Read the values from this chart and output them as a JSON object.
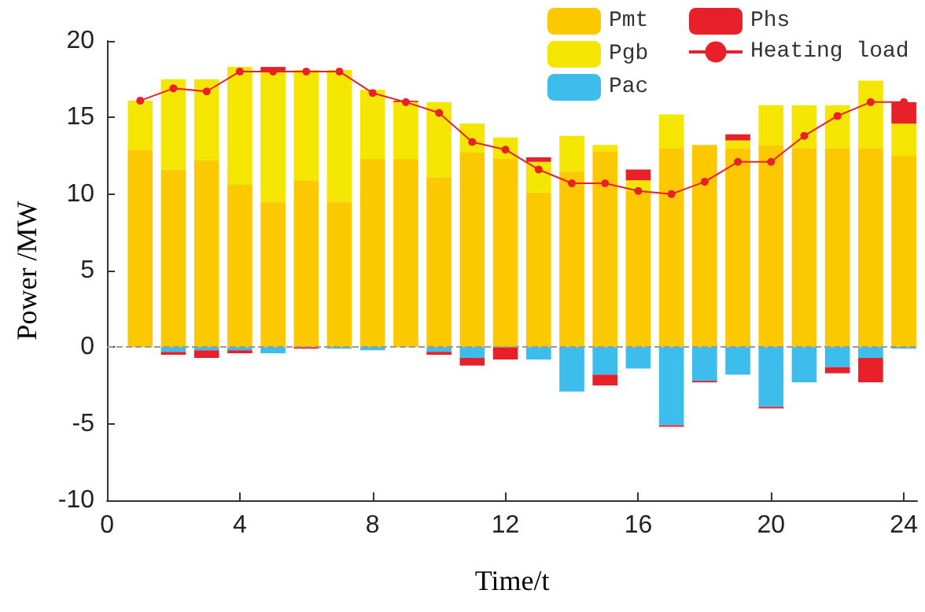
{
  "chart_data": {
    "type": "bar",
    "stacked": true,
    "xlabel": "Time/t",
    "ylabel": "Power /MW",
    "x": [
      1,
      2,
      3,
      4,
      5,
      6,
      7,
      8,
      9,
      10,
      11,
      12,
      13,
      14,
      15,
      16,
      17,
      18,
      19,
      20,
      21,
      22,
      23,
      24
    ],
    "xlim": [
      0,
      24.4
    ],
    "xticks": [
      0,
      4,
      8,
      12,
      16,
      20,
      24
    ],
    "ylim": [
      -10,
      20
    ],
    "yticks": [
      -10,
      -5,
      0,
      5,
      10,
      15,
      20
    ],
    "series": [
      {
        "name": "Pmt",
        "color": "#fcc800",
        "values": [
          12.9,
          11.6,
          12.2,
          10.6,
          9.5,
          10.9,
          9.5,
          12.3,
          12.3,
          11.1,
          12.7,
          12.3,
          10.1,
          11.5,
          12.8,
          10.2,
          13.0,
          13.2,
          13.0,
          13.2,
          13.0,
          13.0,
          13.0,
          12.5
        ]
      },
      {
        "name": "Pgb",
        "color": "#f5e600",
        "values": [
          3.2,
          5.9,
          5.3,
          7.7,
          8.5,
          7.2,
          8.6,
          4.5,
          3.7,
          4.9,
          1.9,
          1.4,
          2.0,
          2.3,
          0.4,
          0.7,
          2.2,
          0,
          0.5,
          2.6,
          2.8,
          2.8,
          4.4,
          2.1
        ]
      },
      {
        "name": "Pac",
        "color": "#3cbdec",
        "values": [
          0,
          -0.3,
          -0.2,
          -0.2,
          -0.4,
          0,
          -0.1,
          -0.2,
          0,
          -0.3,
          -0.7,
          0,
          -0.8,
          -2.9,
          -1.8,
          -1.4,
          -5.1,
          -2.2,
          -1.8,
          -3.9,
          -2.3,
          -1.3,
          -0.7,
          -0.1
        ]
      },
      {
        "name": "Phs",
        "color": "#e8202a",
        "values": [
          0,
          -0.2,
          -0.5,
          -0.2,
          0.3,
          -0.1,
          0,
          0,
          0.1,
          -0.2,
          -0.5,
          -0.8,
          0.3,
          0,
          -0.7,
          0.7,
          -0.1,
          -0.1,
          0.4,
          -0.1,
          0,
          -0.4,
          -1.6,
          1.4
        ]
      },
      {
        "name": "Heating load",
        "type": "line",
        "color": "#e8202a",
        "marker": "circle",
        "values": [
          16.1,
          16.9,
          16.7,
          18.0,
          18.0,
          18.0,
          18.0,
          16.6,
          16.0,
          15.3,
          13.4,
          12.9,
          11.6,
          10.7,
          10.7,
          10.2,
          10.0,
          10.8,
          12.1,
          12.1,
          13.8,
          15.1,
          16.0,
          16.0
        ]
      }
    ],
    "ref_lines": [
      {
        "axis": "y",
        "value": 0,
        "color": "#999999",
        "line_style": "dashed"
      }
    ],
    "grid": false,
    "legend": "top right"
  }
}
